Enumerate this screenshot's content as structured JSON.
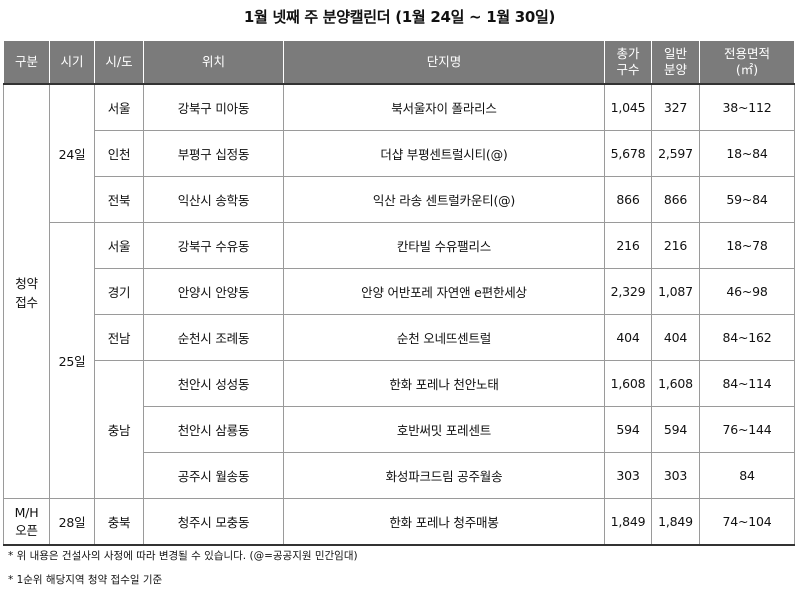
{
  "title": "1월 넷째 주 분양캘린더 (1월 24일 ~ 1월 30일)",
  "headers": {
    "category": "구분",
    "period": "시기",
    "region": "시/도",
    "location": "위치",
    "complex": "단지명",
    "total_a": "총가",
    "total_b": "구수",
    "general_a": "일반",
    "general_b": "분양",
    "area_a": "전용면적",
    "area_b": "(㎡)"
  },
  "category_groups": {
    "subscription_a": "청약",
    "subscription_b": "접수",
    "modelhouse_a": "M/H",
    "modelhouse_b": "오픈"
  },
  "periods": {
    "d24": "24일",
    "d25": "25일",
    "d28": "28일"
  },
  "regions": {
    "seoul1": "서울",
    "incheon": "인천",
    "jeonbuk": "전북",
    "seoul2": "서울",
    "gyeonggi": "경기",
    "jeonnam": "전남",
    "chungnam": "충남",
    "chungbuk": "충북"
  },
  "rows": [
    {
      "location": "강북구 미아동",
      "complex": "북서울자이 폴라리스",
      "total": "1,045",
      "general": "327",
      "area": "38~112"
    },
    {
      "location": "부평구 십정동",
      "complex": "더샵 부평센트럴시티(@)",
      "total": "5,678",
      "general": "2,597",
      "area": "18~84"
    },
    {
      "location": "익산시 송학동",
      "complex": "익산 라송 센트럴카운티(@)",
      "total": "866",
      "general": "866",
      "area": "59~84"
    },
    {
      "location": "강북구 수유동",
      "complex": "칸타빌 수유팰리스",
      "total": "216",
      "general": "216",
      "area": "18~78"
    },
    {
      "location": "안양시 안양동",
      "complex": "안양 어반포레 자연앤 e편한세상",
      "total": "2,329",
      "general": "1,087",
      "area": "46~98"
    },
    {
      "location": "순천시 조례동",
      "complex": "순천 오네뜨센트럴",
      "total": "404",
      "general": "404",
      "area": "84~162"
    },
    {
      "location": "천안시 성성동",
      "complex": "한화 포레나 천안노태",
      "total": "1,608",
      "general": "1,608",
      "area": "84~114"
    },
    {
      "location": "천안시 삼룡동",
      "complex": "호반써밋 포레센트",
      "total": "594",
      "general": "594",
      "area": "76~144"
    },
    {
      "location": "공주시 월송동",
      "complex": "화성파크드림 공주월송",
      "total": "303",
      "general": "303",
      "area": "84"
    },
    {
      "location": "청주시 모충동",
      "complex": "한화 포레나 청주매봉",
      "total": "1,849",
      "general": "1,849",
      "area": "74~104"
    }
  ],
  "notes": [
    "* 위 내용은 건설사의 사정에 따라 변경될 수 있습니다. (@=공공지원 민간임대)",
    "* 1순위 해당지역 청약 접수일 기준"
  ]
}
